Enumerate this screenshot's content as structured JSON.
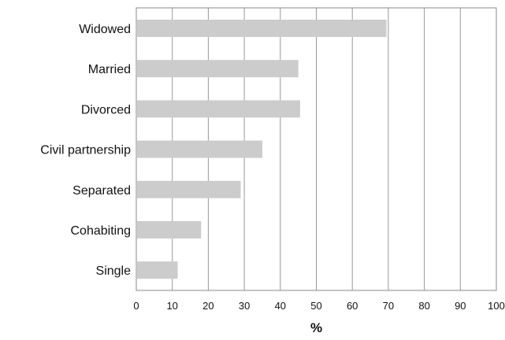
{
  "chart_data": {
    "type": "bar",
    "orientation": "horizontal",
    "categories": [
      "Widowed",
      "Married",
      "Divorced",
      "Civil partnership",
      "Separated",
      "Cohabiting",
      "Single"
    ],
    "values": [
      69.5,
      45,
      45.5,
      35,
      29,
      18,
      11.5
    ],
    "xlabel": "%",
    "ylabel": "",
    "xlim": [
      0,
      100
    ],
    "xticks": [
      "0",
      "10",
      "20",
      "30",
      "40",
      "50",
      "60",
      "70",
      "80",
      "90",
      "100"
    ],
    "grid": "vertical",
    "bar_color": "#cccccc",
    "grid_color": "#999999"
  }
}
